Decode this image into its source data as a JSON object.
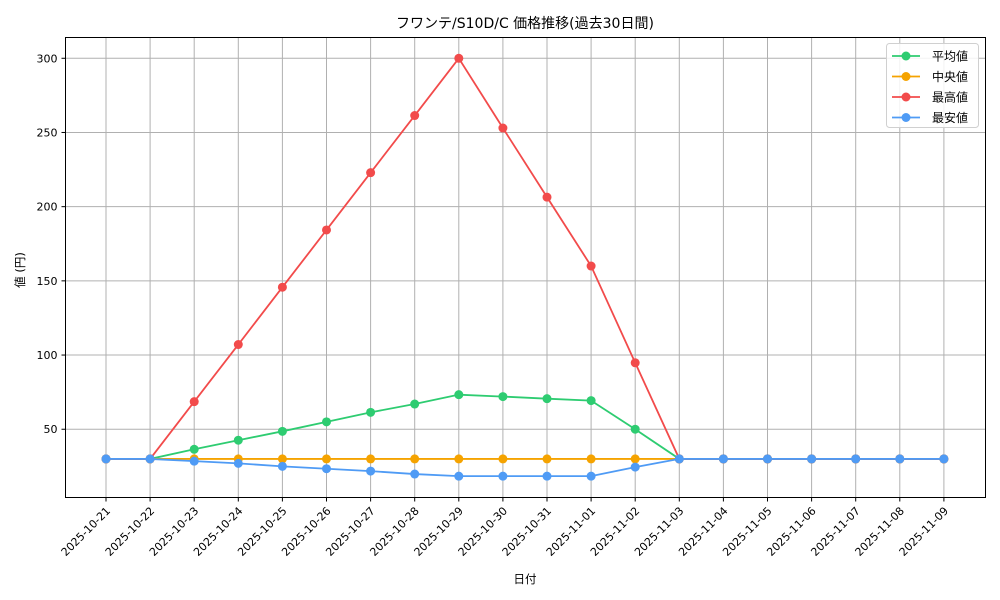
{
  "chart_data": {
    "type": "line",
    "title": "フワンテ/S10D/C 価格推移(過去30日間)",
    "xlabel": "日付",
    "ylabel": "値 (円)",
    "ylim": [
      4,
      314
    ],
    "yticks": [
      50,
      100,
      150,
      200,
      250,
      300
    ],
    "grid": true,
    "legend_position": "upper right",
    "categories": [
      "2025-10-21",
      "2025-10-22",
      "2025-10-23",
      "2025-10-24",
      "2025-10-25",
      "2025-10-26",
      "2025-10-27",
      "2025-10-28",
      "2025-10-29",
      "2025-10-30",
      "2025-10-31",
      "2025-11-01",
      "2025-11-02",
      "2025-11-03",
      "2025-11-04",
      "2025-11-05",
      "2025-11-06",
      "2025-11-07",
      "2025-11-08",
      "2025-11-09"
    ],
    "series": [
      {
        "name": "平均値",
        "color": "#2ecc71",
        "values": [
          30,
          30,
          36.5,
          42.6,
          48.6,
          55,
          61.4,
          67,
          73.3,
          72,
          70.6,
          69.3,
          50,
          30,
          30,
          30,
          30,
          30,
          30,
          30
        ]
      },
      {
        "name": "中央値",
        "color": "#f5a300",
        "values": [
          30,
          30,
          30,
          30,
          30,
          30,
          30,
          30,
          30,
          30,
          30,
          30,
          30,
          30,
          30,
          30,
          30,
          30,
          30,
          30
        ]
      },
      {
        "name": "最高値",
        "color": "#f24b4b",
        "values": [
          30,
          30,
          68.6,
          107.1,
          145.7,
          184.3,
          222.9,
          261.4,
          300,
          253,
          206.4,
          160,
          94.8,
          30,
          30,
          30,
          30,
          30,
          30,
          30
        ]
      },
      {
        "name": "最安値",
        "color": "#4f9bf5",
        "values": [
          30,
          30,
          28.5,
          27,
          25,
          23.4,
          21.8,
          19.8,
          18.4,
          18.4,
          18.4,
          18.4,
          24.5,
          30,
          30,
          30,
          30,
          30,
          30,
          30
        ]
      }
    ]
  }
}
